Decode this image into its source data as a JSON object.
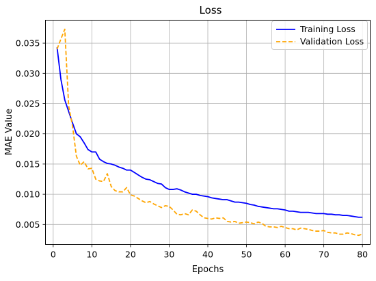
{
  "chart_data": {
    "type": "line",
    "title": "Loss",
    "xlabel": "Epochs",
    "ylabel": "MAE Value",
    "xlim": [
      -2,
      82
    ],
    "ylim": [
      0.0017,
      0.0388
    ],
    "xticks": [
      0,
      10,
      20,
      30,
      40,
      50,
      60,
      70,
      80
    ],
    "xtick_labels": [
      "0",
      "10",
      "20",
      "30",
      "40",
      "50",
      "60",
      "70",
      "80"
    ],
    "yticks": [
      0.005,
      0.01,
      0.015,
      0.02,
      0.025,
      0.03,
      0.035
    ],
    "ytick_labels": [
      "0.005",
      "0.010",
      "0.015",
      "0.020",
      "0.025",
      "0.030",
      "0.035"
    ],
    "grid": true,
    "legend_position": "top-right",
    "series": [
      {
        "name": "Training Loss",
        "color": "#0000ff",
        "style": "solid",
        "x": [
          1,
          2,
          3,
          4,
          5,
          6,
          7,
          8,
          9,
          10,
          11,
          12,
          13,
          14,
          15,
          16,
          17,
          18,
          19,
          20,
          21,
          22,
          23,
          24,
          25,
          26,
          27,
          28,
          29,
          30,
          31,
          32,
          33,
          34,
          35,
          36,
          37,
          38,
          39,
          40,
          41,
          42,
          43,
          44,
          45,
          46,
          47,
          48,
          49,
          50,
          51,
          52,
          53,
          54,
          55,
          56,
          57,
          58,
          59,
          60,
          61,
          62,
          63,
          64,
          65,
          66,
          67,
          68,
          69,
          70,
          71,
          72,
          73,
          74,
          75,
          76,
          77,
          78,
          79,
          80
        ],
        "values": [
          0.0343,
          0.029,
          0.0256,
          0.0237,
          0.0218,
          0.02,
          0.0195,
          0.0185,
          0.0174,
          0.017,
          0.017,
          0.0158,
          0.0154,
          0.0151,
          0.015,
          0.0148,
          0.0145,
          0.0143,
          0.014,
          0.014,
          0.0136,
          0.0132,
          0.0128,
          0.0125,
          0.0124,
          0.0121,
          0.0118,
          0.0117,
          0.0111,
          0.0108,
          0.0108,
          0.0109,
          0.0107,
          0.0104,
          0.0102,
          0.01,
          0.01,
          0.0098,
          0.0097,
          0.0096,
          0.0094,
          0.0093,
          0.0092,
          0.0091,
          0.0091,
          0.0089,
          0.0087,
          0.0087,
          0.0086,
          0.0085,
          0.0083,
          0.0082,
          0.008,
          0.0079,
          0.0078,
          0.0077,
          0.0076,
          0.0076,
          0.0075,
          0.0074,
          0.0072,
          0.0072,
          0.0071,
          0.007,
          0.007,
          0.007,
          0.0069,
          0.0068,
          0.0068,
          0.0068,
          0.0067,
          0.0067,
          0.0066,
          0.0066,
          0.0065,
          0.0065,
          0.0064,
          0.0063,
          0.0062,
          0.0062
        ]
      },
      {
        "name": "Validation Loss",
        "color": "#ffa500",
        "style": "dashed",
        "x": [
          1,
          2,
          3,
          4,
          5,
          6,
          7,
          8,
          9,
          10,
          11,
          12,
          13,
          14,
          15,
          16,
          17,
          18,
          19,
          20,
          21,
          22,
          23,
          24,
          25,
          26,
          27,
          28,
          29,
          30,
          31,
          32,
          33,
          34,
          35,
          36,
          37,
          38,
          39,
          40,
          41,
          42,
          43,
          44,
          45,
          46,
          47,
          48,
          49,
          50,
          51,
          52,
          53,
          54,
          55,
          56,
          57,
          58,
          59,
          60,
          61,
          62,
          63,
          64,
          65,
          66,
          67,
          68,
          69,
          70,
          71,
          72,
          73,
          74,
          75,
          76,
          77,
          78,
          79,
          80
        ],
        "values": [
          0.034,
          0.0357,
          0.0373,
          0.0246,
          0.0213,
          0.0163,
          0.0148,
          0.0154,
          0.0142,
          0.0143,
          0.0125,
          0.0122,
          0.0121,
          0.0134,
          0.0113,
          0.0106,
          0.0104,
          0.0104,
          0.0111,
          0.0099,
          0.0097,
          0.0093,
          0.0089,
          0.0086,
          0.0088,
          0.0084,
          0.0081,
          0.0078,
          0.0081,
          0.008,
          0.0074,
          0.0067,
          0.0066,
          0.0068,
          0.0066,
          0.0074,
          0.0072,
          0.0066,
          0.0061,
          0.006,
          0.0059,
          0.0061,
          0.006,
          0.0061,
          0.0055,
          0.0054,
          0.0055,
          0.0052,
          0.0053,
          0.0054,
          0.0053,
          0.0051,
          0.0054,
          0.0052,
          0.0047,
          0.0046,
          0.0046,
          0.0045,
          0.0047,
          0.0045,
          0.0043,
          0.0043,
          0.0041,
          0.0044,
          0.0043,
          0.0042,
          0.004,
          0.0039,
          0.0039,
          0.004,
          0.0037,
          0.0036,
          0.0036,
          0.0034,
          0.0034,
          0.0036,
          0.0035,
          0.0033,
          0.0032,
          0.0034
        ]
      }
    ]
  }
}
